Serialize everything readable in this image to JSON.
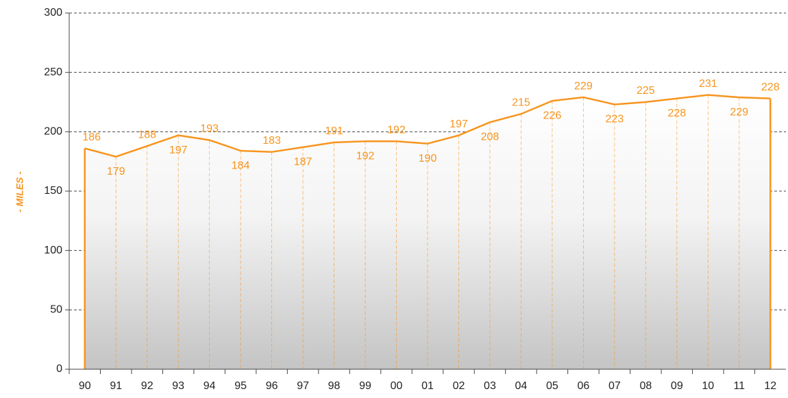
{
  "chart_data": {
    "type": "area",
    "y_label": "- MILES -",
    "categories": [
      "90",
      "91",
      "92",
      "93",
      "94",
      "95",
      "96",
      "97",
      "98",
      "99",
      "00",
      "01",
      "02",
      "03",
      "04",
      "05",
      "06",
      "07",
      "08",
      "09",
      "10",
      "11",
      "12"
    ],
    "values": [
      186,
      179,
      188,
      197,
      193,
      184,
      183,
      187,
      191,
      192,
      192,
      190,
      197,
      208,
      215,
      226,
      229,
      223,
      225,
      228,
      231,
      229,
      228
    ],
    "color": "#f7941d",
    "ylim": [
      0,
      300
    ],
    "yticks": [
      0,
      50,
      100,
      150,
      200,
      250,
      300
    ],
    "grid": true
  }
}
